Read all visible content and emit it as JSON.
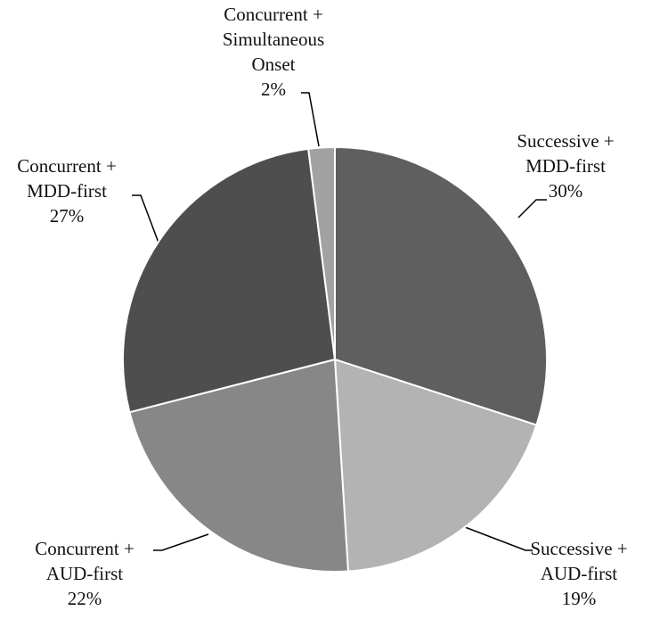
{
  "chart_data": {
    "type": "pie",
    "labels": [
      [
        "Successive +",
        "MDD-first"
      ],
      [
        "Successive +",
        "AUD-first"
      ],
      [
        "Concurrent +",
        "AUD-first"
      ],
      [
        "Concurrent +",
        "MDD-first"
      ],
      [
        "Concurrent +",
        "Simultaneous",
        "Onset"
      ]
    ],
    "values": [
      30,
      19,
      22,
      27,
      2
    ],
    "value_labels": [
      "30%",
      "19%",
      "22%",
      "27%",
      "2%"
    ],
    "colors": [
      "#5f5f5f",
      "#b3b3b3",
      "#878787",
      "#4e4e4e",
      "#a2a2a2"
    ]
  }
}
